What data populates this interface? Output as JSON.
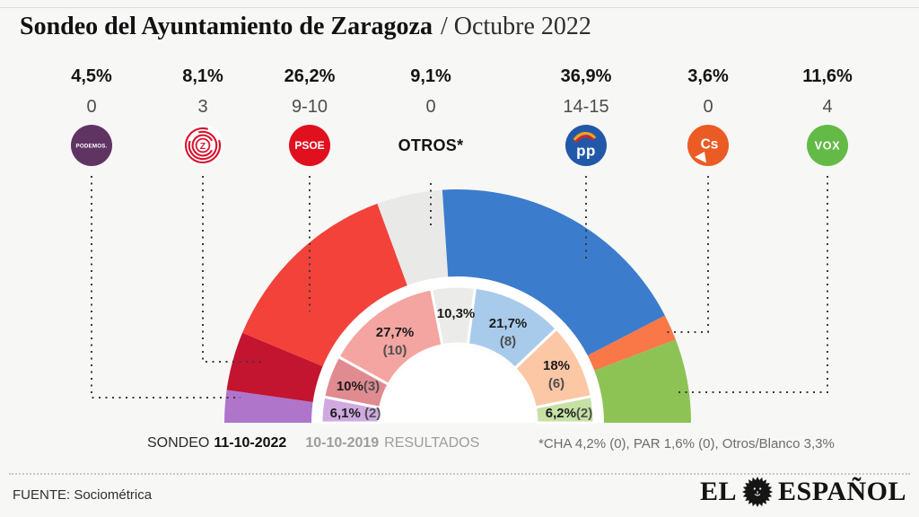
{
  "title": {
    "main": "Sondeo del Ayuntamiento de Zaragoza",
    "period": "/ Octubre 2022"
  },
  "parties": [
    {
      "name": "PODEMOS",
      "pct": "4,5%",
      "seats": "0",
      "logo": {
        "type": "podemos",
        "bg": "#5f3463",
        "label": "PODEMOS.",
        "fg": "#ffffff"
      }
    },
    {
      "name": "ZeC",
      "pct": "8,1%",
      "seats": "3",
      "logo": {
        "type": "zec",
        "bg": "#ffffff",
        "color": "#d8122d",
        "label": "Z"
      }
    },
    {
      "name": "PSOE",
      "pct": "26,2%",
      "seats": "9-10",
      "logo": {
        "type": "psoe",
        "bg": "#e0101e",
        "label": "PSOE",
        "fg": "#ffffff"
      }
    },
    {
      "name": "OTROS*",
      "pct": "9,1%",
      "seats": "0",
      "logo": {
        "type": "text",
        "label": "OTROS*"
      }
    },
    {
      "name": "PP",
      "pct": "36,9%",
      "seats": "14-15",
      "logo": {
        "type": "pp",
        "bg": "#2258a8",
        "label": "pp",
        "fg": "#ffffff",
        "gaviota1": "#f6a21c",
        "gaviota2": "#d8232a"
      }
    },
    {
      "name": "Cs",
      "pct": "3,6%",
      "seats": "0",
      "logo": {
        "type": "cs",
        "bg": "#eb5b24",
        "label": "Cs",
        "fg": "#ffffff"
      }
    },
    {
      "name": "VOX",
      "pct": "11,6%",
      "seats": "4",
      "logo": {
        "type": "vox",
        "bg": "#64ba46",
        "label": "VOX",
        "fg": "#ffffff"
      }
    }
  ],
  "chart_data": {
    "type": "pie",
    "variant": "half-donut-two-rings",
    "title": "Sondeo del Ayuntamiento de Zaragoza / Octubre 2022",
    "categories": [
      "PODEMOS",
      "ZeC",
      "PSOE",
      "OTROS*",
      "PP",
      "Cs",
      "VOX"
    ],
    "series": [
      {
        "name": "SONDEO 11-10-2022",
        "ring": "outer",
        "values": [
          4.5,
          8.1,
          26.2,
          9.1,
          36.9,
          3.6,
          11.6
        ],
        "seats": [
          "0",
          "3",
          "9-10",
          "0",
          "14-15",
          "0",
          "4"
        ],
        "colors": [
          "#ae75cb",
          "#c31430",
          "#f2423a",
          "#e9e9e7",
          "#3c7ccd",
          "#fa7848",
          "#8dc355"
        ]
      },
      {
        "name": "10-10-2019 RESULTADOS",
        "ring": "inner",
        "values": [
          6.1,
          10,
          27.7,
          10.3,
          21.7,
          18,
          6.2
        ],
        "colors": [
          "#cfa9e0",
          "#e08b90",
          "#f4a5a1",
          "#ebebe9",
          "#a8cbec",
          "#fcc7a4",
          "#c6e1a4"
        ],
        "point_labels": [
          {
            "pct": "6,1%",
            "seats": "(2)",
            "spaced": true
          },
          {
            "pct": "10%",
            "seats": "(3)",
            "spaced": false
          },
          {
            "pct": "27,7%",
            "seats": "(10)",
            "spaced": false
          },
          {
            "pct": "10,3%",
            "seats": "",
            "spaced": false
          },
          {
            "pct": "21,7%",
            "seats": "(8)",
            "spaced": false
          },
          {
            "pct": "18%",
            "seats": "(6)",
            "spaced": false
          },
          {
            "pct": "6,2%",
            "seats": "(2)",
            "spaced": false
          }
        ]
      }
    ],
    "footnote": "*CHA 4,2% (0), PAR 1,6% (0), Otros/Blanco 3,3%",
    "legend_position": "bottom",
    "angle_span_deg": 180
  },
  "legend": {
    "sondeo_label": "SONDEO",
    "sondeo_date": "11-10-2022",
    "prev_date": "10-10-2019",
    "prev_label": "RESULTADOS"
  },
  "footnote": "*CHA 4,2% (0), PAR 1,6% (0), Otros/Blanco 3,3%",
  "source": "FUENTE: Sociométrica",
  "brand": {
    "el": "EL",
    "espanol": "ESPAÑOL"
  },
  "colors": {
    "background": "#f7f7f6",
    "leader_line": "#3a3a3a",
    "ring_gap": "#ffffff",
    "muted_text": "#9d9d9d"
  }
}
